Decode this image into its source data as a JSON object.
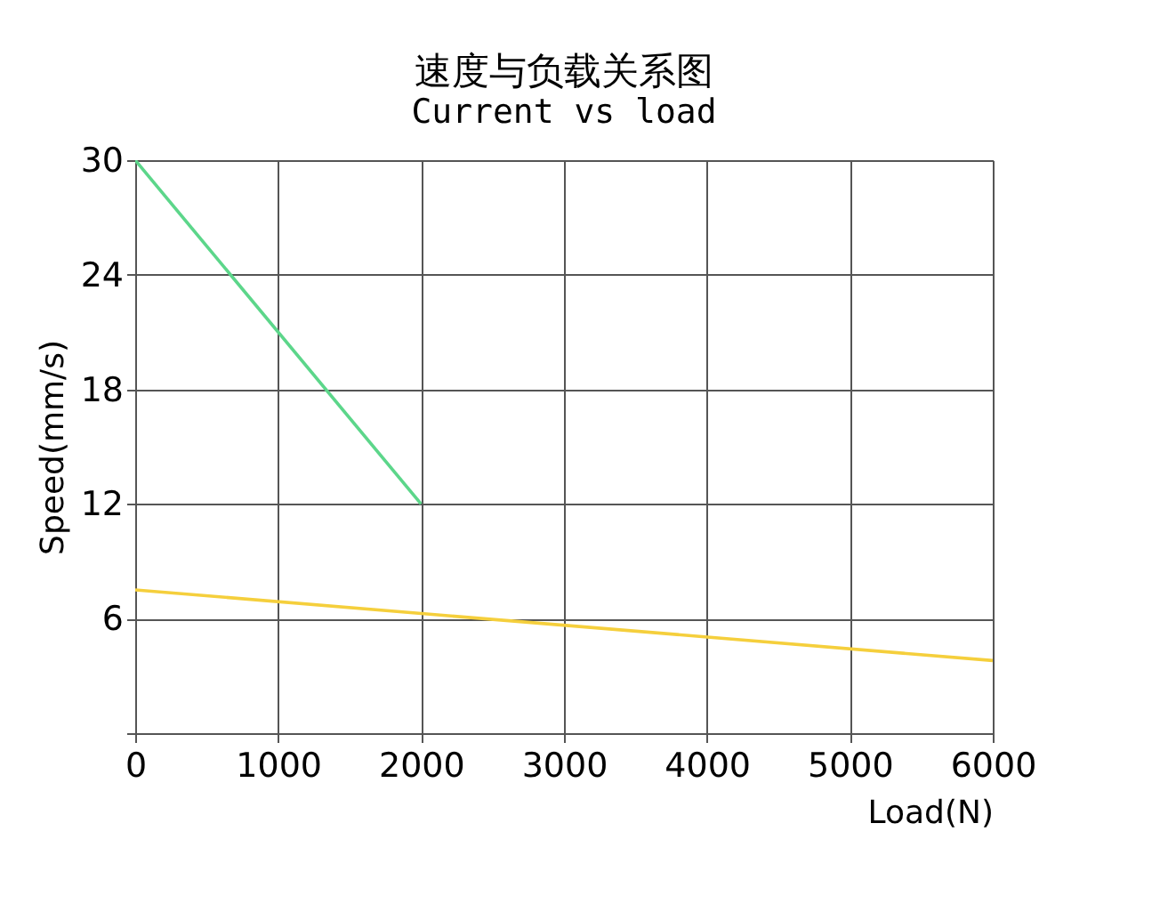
{
  "chart_data": {
    "type": "line",
    "title": "速度与负载关系图",
    "subtitle": "Current vs load",
    "xlabel": "Load(N)",
    "ylabel": "Speed(mm/s)",
    "series": [
      {
        "color": "#5cd68a",
        "x": [
          0,
          2000
        ],
        "values": [
          30,
          12
        ]
      },
      {
        "color": "#f5cf3c",
        "x": [
          0,
          6000
        ],
        "values": [
          7.5,
          3.8
        ]
      }
    ],
    "xlim": [
      0,
      6000
    ],
    "xticks": [
      0,
      1000,
      2000,
      3000,
      4000,
      5000,
      6000
    ],
    "ylim": [
      0,
      30
    ],
    "yticks": [
      {
        "value": 0,
        "label": null
      },
      6,
      12,
      18,
      24,
      30
    ],
    "grid": true,
    "legend": false,
    "marker": "none",
    "line_style": "solid"
  }
}
